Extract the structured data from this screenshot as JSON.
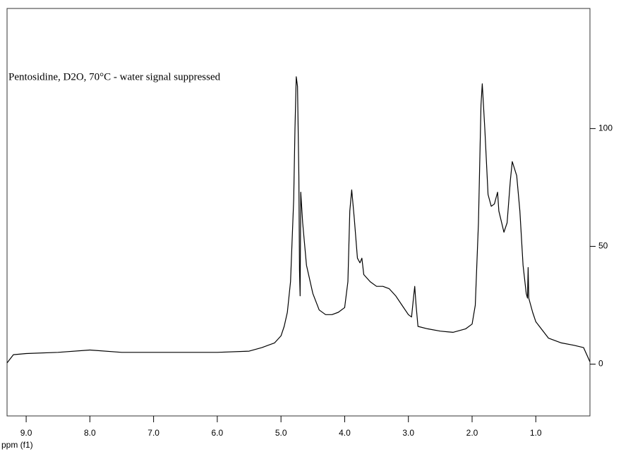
{
  "chart_data": {
    "type": "line",
    "annotation": "Pentosidine, D2O, 70°C - water signal suppressed",
    "xlabel": "ppm (f1)",
    "color": "#000000",
    "x": [
      9.3,
      9.2,
      9.0,
      8.5,
      8.0,
      7.5,
      7.0,
      6.5,
      6.0,
      5.5,
      5.3,
      5.1,
      5.0,
      4.95,
      4.9,
      4.85,
      4.8,
      4.78,
      4.76,
      4.74,
      4.72,
      4.71,
      4.7,
      4.69,
      4.66,
      4.6,
      4.5,
      4.4,
      4.3,
      4.2,
      4.1,
      4.0,
      3.95,
      3.92,
      3.89,
      3.85,
      3.8,
      3.76,
      3.73,
      3.7,
      3.6,
      3.5,
      3.4,
      3.3,
      3.2,
      3.1,
      3.0,
      2.95,
      2.92,
      2.9,
      2.88,
      2.85,
      2.7,
      2.5,
      2.3,
      2.1,
      2.0,
      1.95,
      1.9,
      1.86,
      1.84,
      1.8,
      1.75,
      1.7,
      1.65,
      1.6,
      1.58,
      1.5,
      1.45,
      1.4,
      1.37,
      1.3,
      1.25,
      1.2,
      1.15,
      1.13,
      1.12,
      1.11,
      1.05,
      1.0,
      0.8,
      0.6,
      0.4,
      0.25,
      0.15
    ],
    "values": [
      0.5,
      4,
      4.5,
      5,
      6,
      5,
      5,
      5,
      5,
      5.5,
      7,
      9,
      12,
      16,
      22,
      35,
      70,
      100,
      122,
      118,
      80,
      40,
      29,
      73,
      60,
      42,
      30,
      23,
      21,
      21,
      22,
      24,
      35,
      65,
      74,
      62,
      45,
      43,
      45,
      38,
      35,
      33,
      33,
      32,
      29,
      25,
      21,
      20,
      28,
      33,
      25,
      16,
      15,
      14,
      13.5,
      15,
      17,
      25,
      60,
      110,
      119,
      100,
      72,
      67,
      68,
      73,
      65,
      56,
      60,
      78,
      86,
      80,
      65,
      42,
      30,
      28,
      41,
      28,
      22,
      18,
      11,
      9,
      8,
      7,
      1
    ],
    "xlim": [
      9.3,
      0.15
    ],
    "ylim": [
      -22,
      151
    ],
    "xticks": [
      {
        "value": 9,
        "label": "9.0"
      },
      {
        "value": 8,
        "label": "8.0"
      },
      {
        "value": 7,
        "label": "7.0"
      },
      {
        "value": 6,
        "label": "6.0"
      },
      {
        "value": 5,
        "label": "5.0"
      },
      {
        "value": 4,
        "label": "4.0"
      },
      {
        "value": 3,
        "label": "3.0"
      },
      {
        "value": 2,
        "label": "2.0"
      },
      {
        "value": 1,
        "label": "1.0"
      }
    ],
    "yticks": [
      0,
      50,
      100
    ]
  }
}
